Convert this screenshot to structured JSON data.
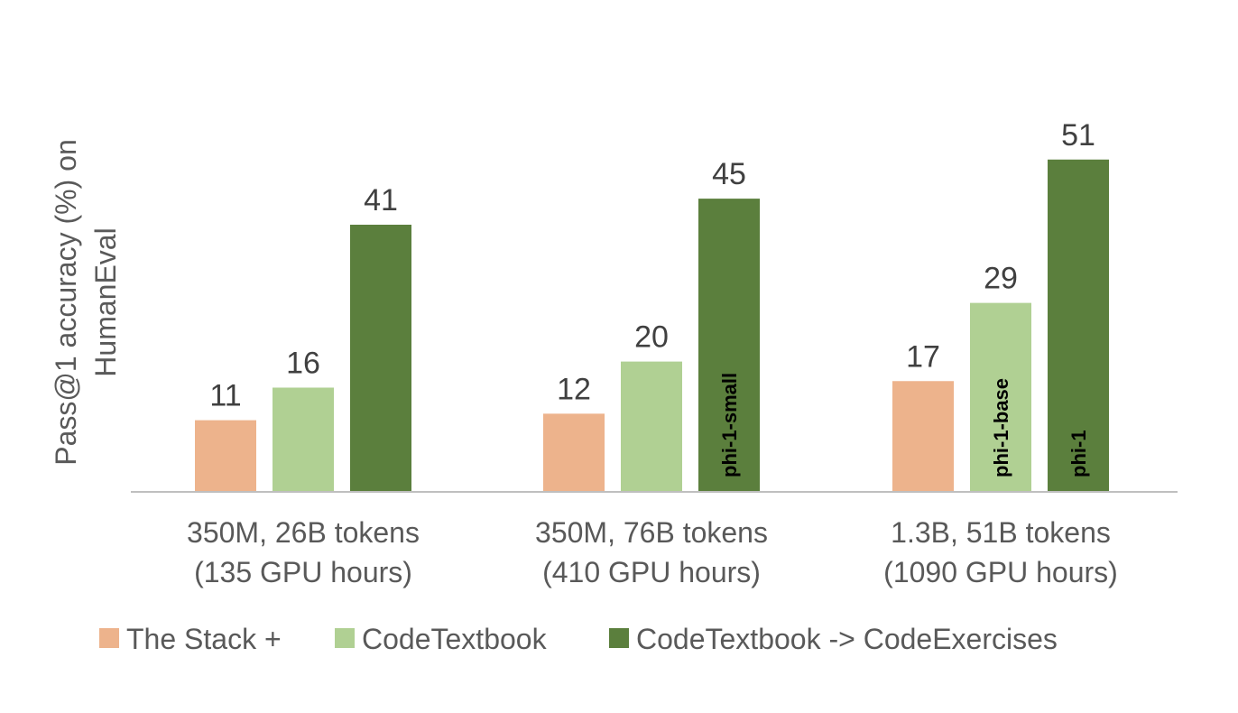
{
  "chart_data": {
    "type": "bar",
    "ylabel_lines": [
      "Pass@1 accuracy (%) on",
      "HumanEval"
    ],
    "categories": [
      [
        "350M, 26B tokens",
        "(135 GPU hours)"
      ],
      [
        "350M, 76B tokens",
        "(410 GPU hours)"
      ],
      [
        "1.3B, 51B tokens",
        "(1090 GPU hours)"
      ]
    ],
    "series": [
      {
        "name": "The Stack +",
        "color": "#EDB38C",
        "values": [
          11,
          12,
          17
        ],
        "bar_labels": [
          "",
          "",
          ""
        ]
      },
      {
        "name": "CodeTextbook",
        "color": "#B0D093",
        "values": [
          16,
          20,
          29
        ],
        "bar_labels": [
          "",
          "",
          "phi-1-base"
        ]
      },
      {
        "name": "CodeTextbook -> CodeExercises",
        "color": "#5B7F3D",
        "values": [
          41,
          45,
          51
        ],
        "bar_labels": [
          "",
          "phi-1-small",
          "phi-1"
        ]
      }
    ],
    "ylim": [
      0,
      55
    ],
    "grid": false,
    "legend_position": "bottom"
  }
}
